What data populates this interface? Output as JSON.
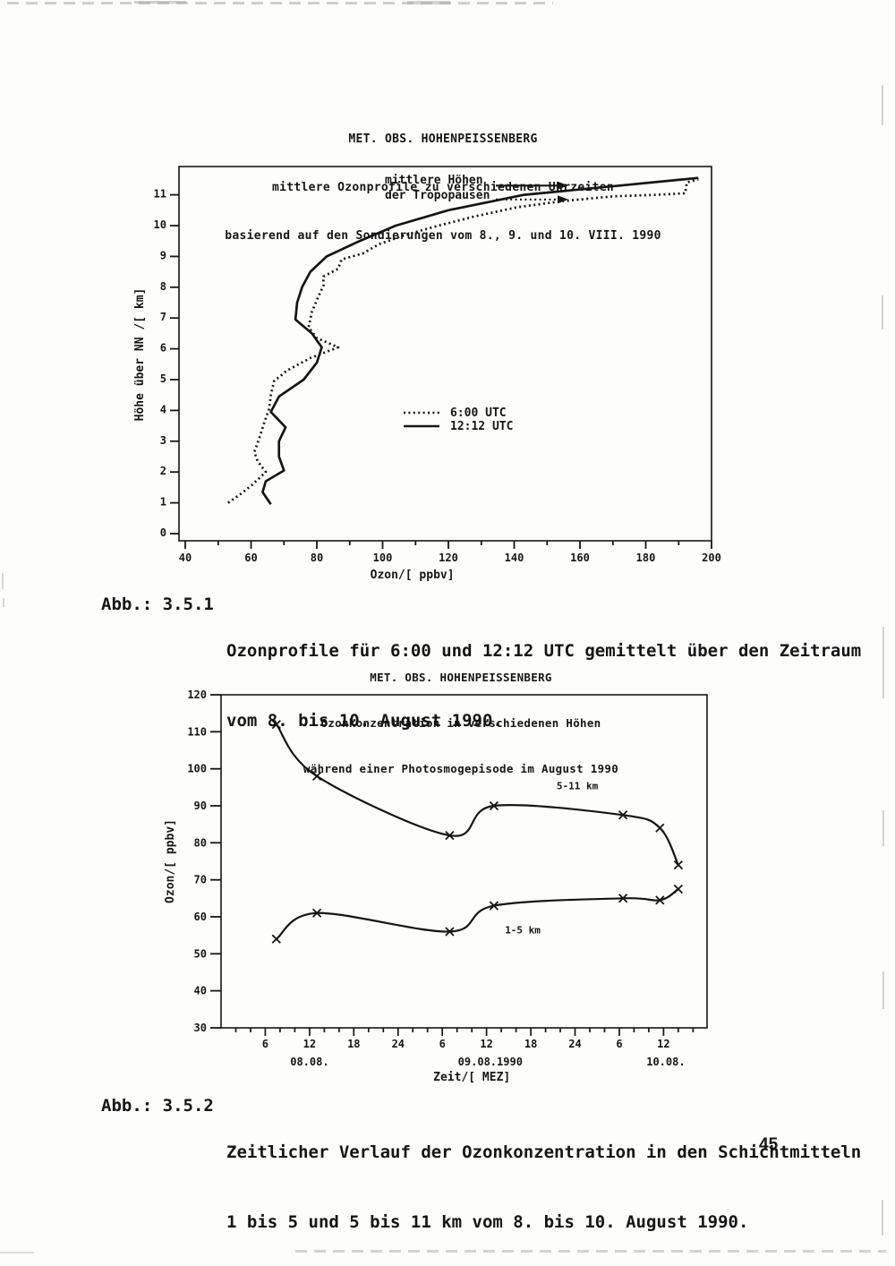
{
  "page": {
    "number": "45"
  },
  "figure1": {
    "title_lines": [
      "MET. OBS. HOHENPEISSENBERG",
      "mittlere Ozonprofile zu verschiedenen Uhrzeiten",
      "basierend auf den Sondierungen vom 8., 9. und 10. VIII. 1990"
    ],
    "caption": {
      "label": "Abb.: 3.5.1",
      "line1": "Ozonprofile für 6:00 und 12:12 UTC gemittelt über den Zeitraum",
      "line2": "vom 8. bis 10. August 1990."
    }
  },
  "figure2": {
    "title_lines": [
      "MET. OBS. HOHENPEISSENBERG",
      "Ozonkonzentration in verschiedenen Höhen",
      "während einer Photosmogepisode im August 1990"
    ],
    "caption": {
      "label": "Abb.: 3.5.2",
      "line1": "Zeitlicher Verlauf der Ozonkonzentration in den Schichtmitteln",
      "line2": "1 bis 5 und 5 bis 11 km vom 8. bis 10. August 1990."
    }
  },
  "chart_data": [
    {
      "type": "line",
      "title": "MET. OBS. HOHENPEISSENBERG — mittlere Ozonprofile zu verschiedenen Uhrzeiten, basierend auf den Sondierungen vom 8., 9. und 10. VIII. 1990",
      "xlabel": "Ozon/[ ppbv]",
      "ylabel": "Höhe über NN /[ km]",
      "xlim": [
        40,
        200
      ],
      "ylim": [
        0,
        12.1
      ],
      "grid": false,
      "x_ticks": [
        40,
        60,
        80,
        100,
        120,
        140,
        160,
        180,
        200
      ],
      "x_minor_step": 10,
      "y_ticks": [
        0,
        1,
        2,
        3,
        4,
        5,
        6,
        7,
        8,
        9,
        10,
        11
      ],
      "annotation": {
        "line1": "mittlere Höhen",
        "line2": "der Tropopausen"
      },
      "tropopause_arrows": [
        {
          "style": "solid",
          "km": 11.3
        },
        {
          "style": "dotted",
          "km": 10.85
        }
      ],
      "legend": [
        {
          "label": "6:00 UTC",
          "style": "dotted"
        },
        {
          "label": "12:12 UTC",
          "style": "solid"
        }
      ],
      "series": [
        {
          "name": "12:12 UTC",
          "style": "solid",
          "points_ppbv_km": [
            [
              66,
              0.95
            ],
            [
              63.5,
              1.35
            ],
            [
              64.5,
              1.7
            ],
            [
              70,
              2.05
            ],
            [
              68.5,
              2.5
            ],
            [
              68.5,
              3.0
            ],
            [
              70.5,
              3.45
            ],
            [
              66,
              3.95
            ],
            [
              68.5,
              4.45
            ],
            [
              76,
              5.0
            ],
            [
              80,
              5.55
            ],
            [
              81.5,
              6.05
            ],
            [
              78.5,
              6.5
            ],
            [
              73.5,
              6.95
            ],
            [
              74,
              7.5
            ],
            [
              75.5,
              8.0
            ],
            [
              78,
              8.5
            ],
            [
              83,
              9.0
            ],
            [
              93,
              9.5
            ],
            [
              104,
              10.0
            ],
            [
              120,
              10.5
            ],
            [
              143,
              11.0
            ],
            [
              172,
              11.3
            ],
            [
              196,
              11.55
            ]
          ]
        },
        {
          "name": "6:00 UTC",
          "style": "dotted",
          "points_ppbv_km": [
            [
              53,
              1.0
            ],
            [
              57,
              1.3
            ],
            [
              60.5,
              1.6
            ],
            [
              64.5,
              2.0
            ],
            [
              62,
              2.35
            ],
            [
              61,
              2.65
            ],
            [
              62.5,
              3.1
            ],
            [
              64,
              3.6
            ],
            [
              65.5,
              4.05
            ],
            [
              66,
              4.5
            ],
            [
              67,
              4.95
            ],
            [
              71,
              5.3
            ],
            [
              78,
              5.7
            ],
            [
              86.5,
              6.05
            ],
            [
              80,
              6.35
            ],
            [
              77.5,
              6.7
            ],
            [
              78.5,
              7.2
            ],
            [
              80.5,
              7.7
            ],
            [
              82,
              8.05
            ],
            [
              82,
              8.35
            ],
            [
              86.5,
              8.6
            ],
            [
              87.5,
              8.9
            ],
            [
              94,
              9.1
            ],
            [
              99,
              9.4
            ],
            [
              107,
              9.7
            ],
            [
              117,
              10.0
            ],
            [
              128,
              10.3
            ],
            [
              141,
              10.6
            ],
            [
              155,
              10.8
            ],
            [
              170,
              10.95
            ],
            [
              183,
              11.0
            ],
            [
              192,
              11.05
            ],
            [
              192.5,
              11.4
            ],
            [
              196,
              11.5
            ]
          ]
        }
      ]
    },
    {
      "type": "line",
      "title": "MET. OBS. HOHENPEISSENBERG — Ozonkonzentration in verschiedenen Höhen während einer Photosmogepisode im August 1990",
      "xlabel": "Zeit/[ MEZ]",
      "ylabel": "Ozon/[ ppbv]",
      "ylim": [
        30,
        120
      ],
      "grid": false,
      "y_ticks": [
        120,
        110,
        100,
        90,
        80,
        70,
        60,
        50,
        40,
        30
      ],
      "x_minor_step": 2,
      "x_range_hours": [
        0,
        66
      ],
      "x_tick_labels": [
        {
          "t": 6,
          "label": "6"
        },
        {
          "t": 12,
          "label": "12"
        },
        {
          "t": 18,
          "label": "18"
        },
        {
          "t": 24,
          "label": "24"
        },
        {
          "t": 30,
          "label": "6"
        },
        {
          "t": 36,
          "label": "12"
        },
        {
          "t": 42,
          "label": "18"
        },
        {
          "t": 48,
          "label": "24"
        },
        {
          "t": 54,
          "label": "6"
        },
        {
          "t": 60,
          "label": "12"
        }
      ],
      "day_labels": [
        {
          "t": 12,
          "label": "08.08."
        },
        {
          "t": 36.5,
          "label": "09.08.1990"
        },
        {
          "t": 60.3,
          "label": "10.08."
        }
      ],
      "marker": "x",
      "series": [
        {
          "name": "5-11 km",
          "x_hours": [
            7.5,
            13,
            31,
            37,
            54.5,
            59.5,
            62
          ],
          "values": [
            112,
            98,
            82,
            90,
            87.5,
            84,
            74
          ],
          "label_at": {
            "t": 45.5,
            "v": 94.5
          }
        },
        {
          "name": "1-5 km",
          "x_hours": [
            7.5,
            13,
            31,
            37,
            54.5,
            59.5,
            62
          ],
          "values": [
            54,
            61,
            56,
            63,
            65,
            64.5,
            67.5
          ],
          "label_at": {
            "t": 38.5,
            "v": 55.5
          }
        }
      ]
    }
  ]
}
